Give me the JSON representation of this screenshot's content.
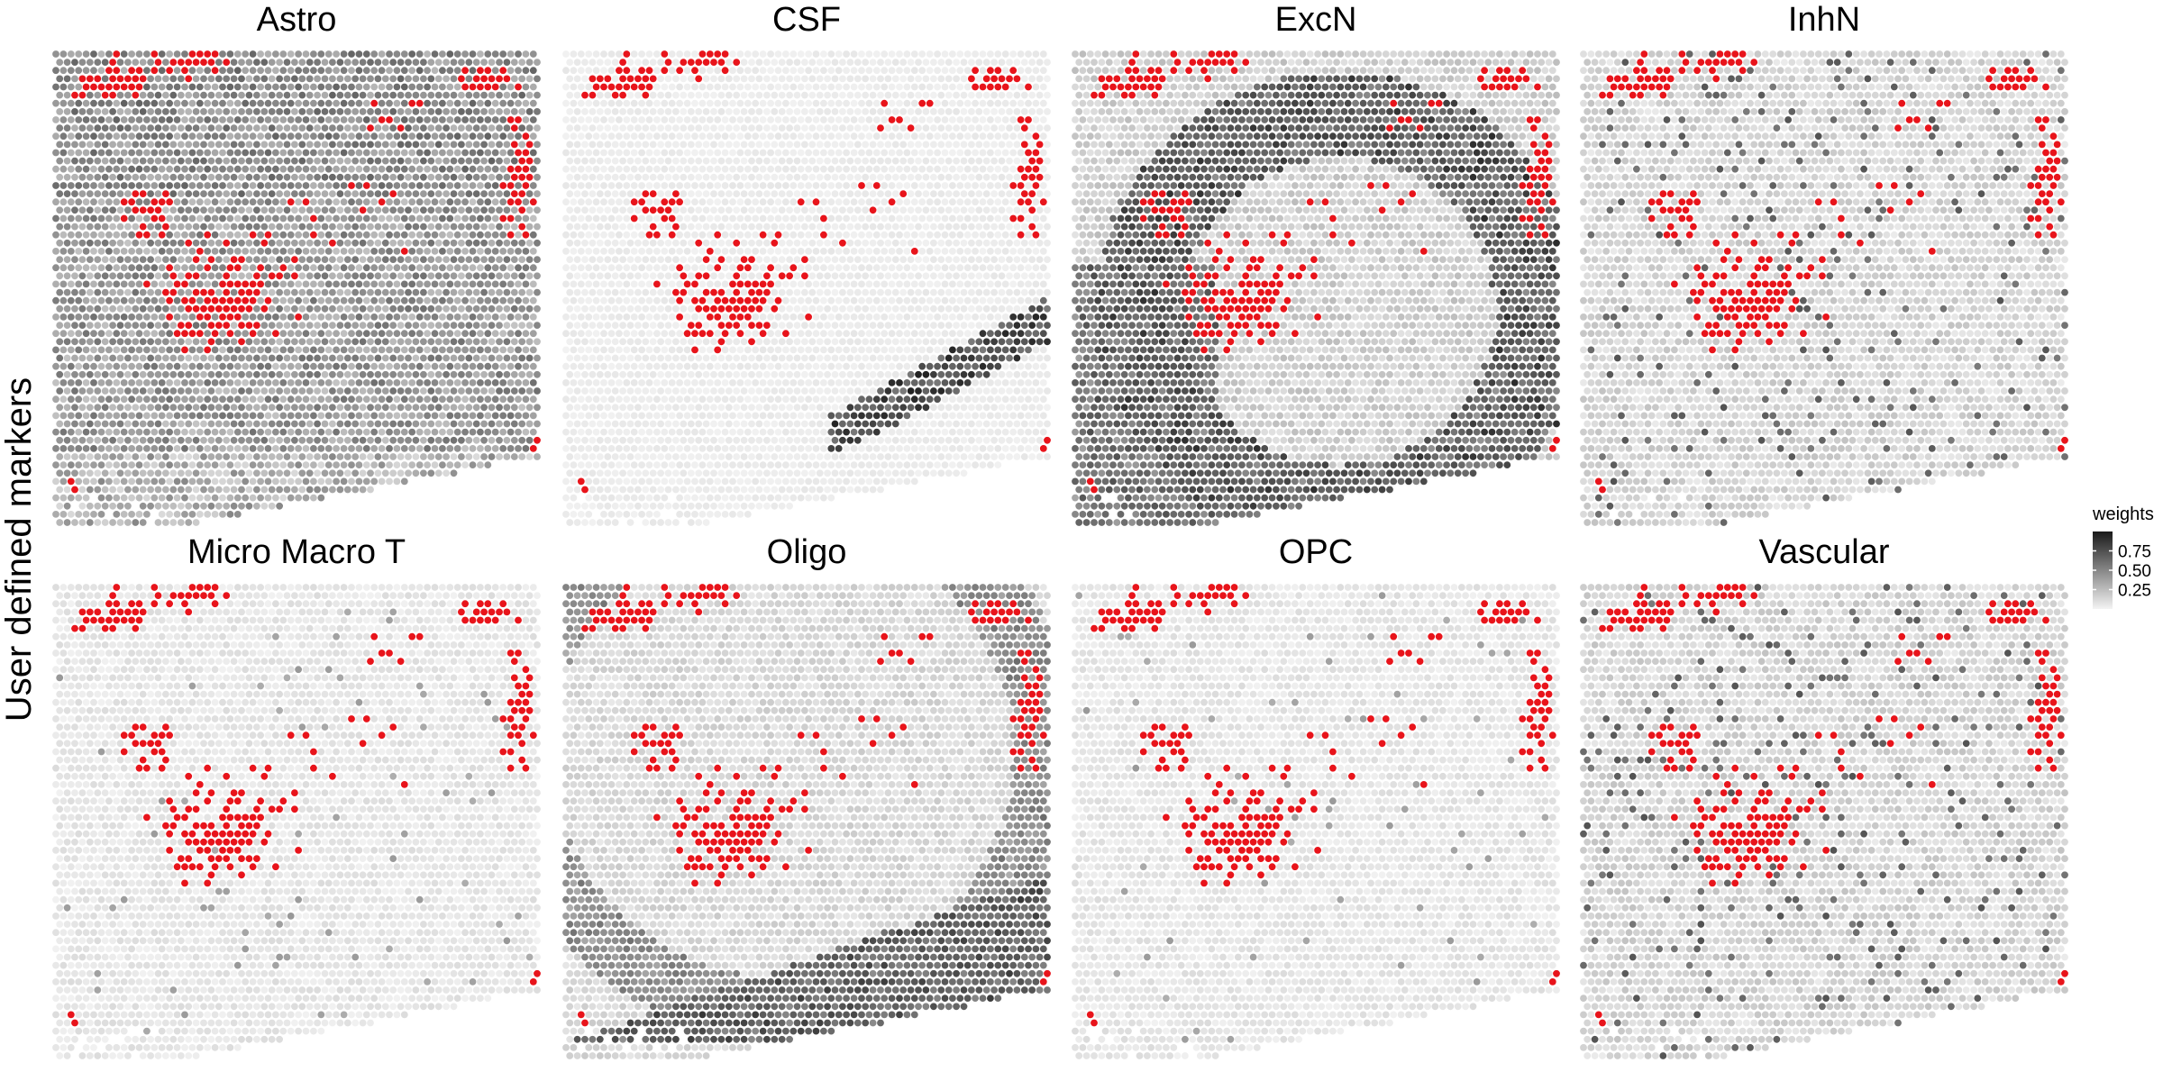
{
  "figure": {
    "row_label": "User defined markers"
  },
  "colors": {
    "background": "#ffffff",
    "weight_low": "#f2f2f2",
    "weight_high": "#1a1a1a",
    "highlight": "#e8141b"
  },
  "chart_data": {
    "type": "heatmap",
    "description_of_marks": "hexagonal spatial spot grid per panel, grayscale by weight, red spots are highlighted barcodes",
    "panels": [
      {
        "title": "Astro",
        "pattern": "broad"
      },
      {
        "title": "CSF",
        "pattern": "csf"
      },
      {
        "title": "ExcN",
        "pattern": "arc"
      },
      {
        "title": "InhN",
        "pattern": "sparse"
      },
      {
        "title": "Micro  Macro  T",
        "pattern": "faint"
      },
      {
        "title": "Oligo",
        "pattern": "band"
      },
      {
        "title": "OPC",
        "pattern": "faint"
      },
      {
        "title": "Vascular",
        "pattern": "sparse"
      }
    ],
    "legend": {
      "title": "weights",
      "ticks": [
        0.75,
        0.5,
        0.25
      ],
      "tick_labels": [
        "0.75",
        "0.50",
        "0.25"
      ],
      "range": [
        0,
        1
      ]
    },
    "grid": false
  }
}
